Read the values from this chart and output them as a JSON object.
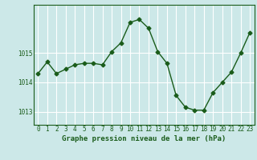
{
  "x": [
    0,
    1,
    2,
    3,
    4,
    5,
    6,
    7,
    8,
    9,
    10,
    11,
    12,
    13,
    14,
    15,
    16,
    17,
    18,
    19,
    20,
    21,
    22,
    23
  ],
  "y": [
    1014.3,
    1014.7,
    1014.3,
    1014.45,
    1014.6,
    1014.65,
    1014.65,
    1014.6,
    1015.05,
    1015.35,
    1016.05,
    1016.15,
    1015.85,
    1015.05,
    1014.65,
    1013.55,
    1013.15,
    1013.05,
    1013.05,
    1013.65,
    1014.0,
    1014.35,
    1015.0,
    1015.7
  ],
  "line_color": "#1a5c1a",
  "marker": "D",
  "marker_size": 2.5,
  "line_width": 1.0,
  "bg_color": "#cce8e8",
  "grid_color": "#ffffff",
  "xlabel": "Graphe pression niveau de la mer (hPa)",
  "xlabel_fontsize": 6.5,
  "tick_fontsize": 5.5,
  "ylim": [
    1012.55,
    1016.65
  ],
  "yticks": [
    1013,
    1014,
    1015
  ],
  "xlim": [
    -0.5,
    23.5
  ]
}
